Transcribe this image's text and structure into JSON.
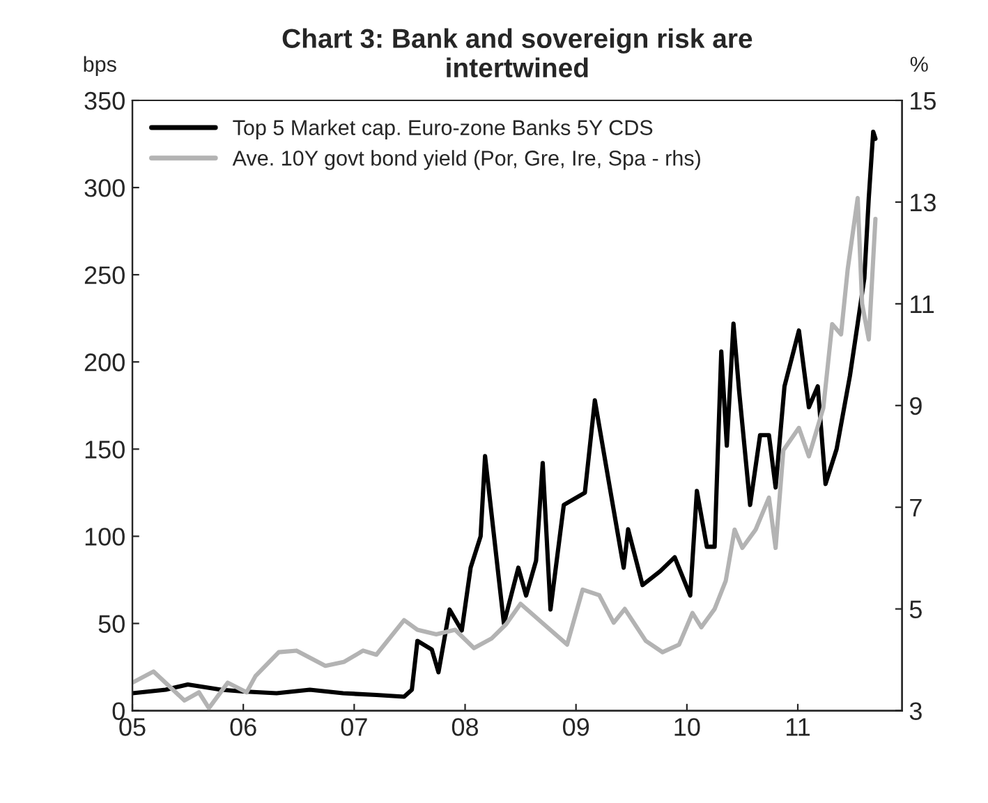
{
  "chart_data": {
    "type": "line",
    "title": "Chart 3: Bank and sovereign risk are\nintertwined",
    "ylabel": "bps",
    "y2label": "%",
    "xlim": [
      2005,
      2011.94
    ],
    "xticks": [
      {
        "value": 2005,
        "label": "05"
      },
      {
        "value": 2006,
        "label": "06"
      },
      {
        "value": 2007,
        "label": "07"
      },
      {
        "value": 2008,
        "label": "08"
      },
      {
        "value": 2009,
        "label": "09"
      },
      {
        "value": 2010,
        "label": "10"
      },
      {
        "value": 2011,
        "label": "11"
      }
    ],
    "ylim": [
      0,
      350
    ],
    "yticks": [
      0,
      50,
      100,
      150,
      200,
      250,
      300,
      350
    ],
    "y2lim": [
      3,
      15
    ],
    "y2ticks": [
      3,
      5,
      7,
      9,
      11,
      13,
      15
    ],
    "grid": false,
    "legend": "top left",
    "line_style": "solid",
    "marker": "none",
    "series": [
      {
        "name": "Top 5 Market cap. Euro-zone Banks 5Y CDS",
        "color": "#000000",
        "x": [
          2005.0,
          2005.3,
          2005.5,
          2005.8,
          2006.0,
          2006.3,
          2006.6,
          2006.9,
          2007.2,
          2007.45,
          2007.52,
          2007.57,
          2007.7,
          2007.76,
          2007.86,
          2007.97,
          2008.05,
          2008.14,
          2008.18,
          2008.24,
          2008.3,
          2008.35,
          2008.48,
          2008.55,
          2008.64,
          2008.7,
          2008.77,
          2008.89,
          2009.08,
          2009.17,
          2009.31,
          2009.43,
          2009.47,
          2009.6,
          2009.76,
          2009.89,
          2010.03,
          2010.09,
          2010.18,
          2010.25,
          2010.31,
          2010.36,
          2010.42,
          2010.47,
          2010.57,
          2010.66,
          2010.74,
          2010.8,
          2010.88,
          2011.01,
          2011.1,
          2011.18,
          2011.25,
          2011.35,
          2011.47,
          2011.54,
          2011.6,
          2011.64,
          2011.68,
          2011.7
        ],
        "values": [
          10,
          12,
          15,
          12,
          11,
          10,
          12,
          10,
          9,
          8,
          12,
          40,
          35,
          22,
          58,
          46,
          82,
          100,
          146,
          112,
          78,
          50,
          82,
          66,
          86,
          142,
          58,
          118,
          125,
          178,
          126,
          82,
          104,
          72,
          80,
          88,
          66,
          126,
          94,
          94,
          206,
          152,
          222,
          184,
          118,
          158,
          158,
          128,
          186,
          218,
          174,
          186,
          130,
          150,
          192,
          222,
          248,
          294,
          332,
          328
        ]
      },
      {
        "name": "Ave. 10Y govt bond yield (Por, Gre, Ire, Spa - rhs)",
        "color": "#b3b3b3",
        "axis": "y2",
        "x": [
          2005.0,
          2005.19,
          2005.47,
          2005.6,
          2005.69,
          2005.86,
          2006.03,
          2006.11,
          2006.32,
          2006.48,
          2006.74,
          2006.91,
          2007.08,
          2007.2,
          2007.45,
          2007.57,
          2007.74,
          2007.91,
          2008.08,
          2008.24,
          2008.37,
          2008.5,
          2008.71,
          2008.92,
          2009.06,
          2009.21,
          2009.34,
          2009.44,
          2009.63,
          2009.78,
          2009.93,
          2010.05,
          2010.13,
          2010.25,
          2010.35,
          2010.43,
          2010.5,
          2010.62,
          2010.74,
          2010.8,
          2010.87,
          2011.01,
          2011.1,
          2011.23,
          2011.31,
          2011.39,
          2011.45,
          2011.54,
          2011.58,
          2011.64,
          2011.7
        ],
        "values": [
          3.55,
          3.77,
          3.2,
          3.36,
          3.05,
          3.55,
          3.36,
          3.68,
          4.15,
          4.18,
          3.88,
          3.96,
          4.18,
          4.1,
          4.78,
          4.59,
          4.5,
          4.59,
          4.23,
          4.42,
          4.7,
          5.1,
          4.7,
          4.3,
          5.38,
          5.27,
          4.73,
          5.0,
          4.37,
          4.15,
          4.3,
          4.92,
          4.64,
          5.0,
          5.55,
          6.56,
          6.2,
          6.56,
          7.19,
          6.2,
          8.12,
          8.56,
          8.0,
          8.95,
          10.6,
          10.4,
          11.68,
          13.08,
          11.0,
          10.3,
          12.67
        ]
      }
    ]
  }
}
